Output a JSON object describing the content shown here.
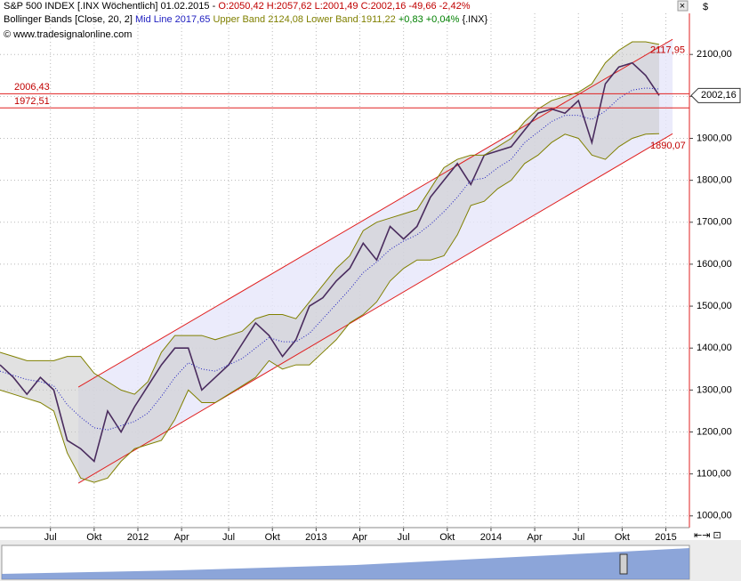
{
  "chart_data": {
    "type": "line",
    "title": "S&P 500 INDEX [.INX  Wöchentlich] 01.02.2015  -",
    "ohlc_text": "O:2050,42 H:2057,62 L:2001,49 C:2002,16 -49,66 -2,42%",
    "indicator": "Bollinger Bands [Close, 20, 2]",
    "change_text": "+0,83 +0,04%",
    "symbol": "{.INX}",
    "source": "© www.tradesignalonline.com",
    "x": [
      0,
      4,
      8,
      12,
      16,
      20,
      24,
      28,
      32,
      36,
      40,
      44,
      48,
      52,
      56,
      60,
      64,
      68,
      72,
      76,
      80,
      84,
      88,
      92,
      96,
      100,
      104,
      108,
      112,
      116,
      120,
      124,
      128,
      132,
      136,
      140,
      144,
      148,
      152,
      156,
      160,
      164,
      168,
      172,
      176,
      180,
      184,
      188,
      192,
      196
    ],
    "series": [
      {
        "name": "S&P 500 INDEX",
        "color": "#4a2c5e",
        "values": [
          1360,
          1330,
          1290,
          1330,
          1300,
          1180,
          1160,
          1130,
          1250,
          1200,
          1260,
          1310,
          1360,
          1400,
          1400,
          1300,
          1330,
          1360,
          1410,
          1460,
          1430,
          1380,
          1420,
          1500,
          1520,
          1560,
          1590,
          1650,
          1610,
          1690,
          1660,
          1690,
          1760,
          1800,
          1840,
          1790,
          1860,
          1870,
          1880,
          1920,
          1960,
          1970,
          1960,
          1990,
          1890,
          2030,
          2070,
          2080,
          2050,
          2002.16
        ]
      },
      {
        "name": "Upper Band",
        "color": "#808000",
        "last_label": "2124,08",
        "values": [
          1390,
          1380,
          1370,
          1370,
          1370,
          1380,
          1380,
          1340,
          1320,
          1300,
          1290,
          1320,
          1390,
          1430,
          1430,
          1430,
          1420,
          1430,
          1440,
          1470,
          1480,
          1480,
          1470,
          1510,
          1550,
          1590,
          1620,
          1680,
          1700,
          1710,
          1720,
          1730,
          1780,
          1830,
          1850,
          1860,
          1860,
          1880,
          1900,
          1940,
          1970,
          1990,
          2000,
          2010,
          2030,
          2080,
          2110,
          2130,
          2130,
          2124.08
        ]
      },
      {
        "name": "Lower Band",
        "color": "#808000",
        "last_label": "1911,22",
        "values": [
          1300,
          1290,
          1280,
          1270,
          1250,
          1150,
          1090,
          1080,
          1090,
          1130,
          1160,
          1170,
          1180,
          1230,
          1300,
          1270,
          1270,
          1290,
          1310,
          1330,
          1370,
          1350,
          1360,
          1360,
          1390,
          1420,
          1460,
          1480,
          1510,
          1560,
          1590,
          1610,
          1610,
          1620,
          1670,
          1740,
          1750,
          1780,
          1800,
          1840,
          1860,
          1890,
          1910,
          1900,
          1860,
          1850,
          1880,
          1900,
          1910,
          1911.22
        ]
      },
      {
        "name": "Mid Line",
        "color": "#2020c0",
        "last_label": "2017,65",
        "values": [
          1345,
          1335,
          1325,
          1320,
          1310,
          1265,
          1235,
          1210,
          1205,
          1215,
          1225,
          1245,
          1285,
          1330,
          1365,
          1350,
          1345,
          1360,
          1375,
          1400,
          1425,
          1415,
          1415,
          1435,
          1470,
          1505,
          1540,
          1580,
          1605,
          1635,
          1655,
          1670,
          1695,
          1725,
          1760,
          1800,
          1805,
          1830,
          1850,
          1890,
          1915,
          1940,
          1955,
          1955,
          1945,
          1965,
          1995,
          2015,
          2020,
          2017.65
        ]
      }
    ],
    "channel": [
      {
        "x": [
          23.3,
          200
        ],
        "values": [
          1307,
          2136
        ],
        "end_label": {
          "value": 2117.95,
          "label": "2117,95"
        }
      },
      {
        "x": [
          23.3,
          200
        ],
        "values": [
          1078,
          1911
        ],
        "end_label": {
          "value": 1890.07,
          "label": "1890,07"
        }
      }
    ],
    "hlines": [
      {
        "value": 2006.43,
        "label": "2006,43"
      },
      {
        "value": 1972.51,
        "label": "1972,51"
      }
    ],
    "last_price": {
      "value": 2002.16,
      "label": "2002,16"
    },
    "xlim": [
      0,
      205
    ],
    "xticks": [
      {
        "value": 15,
        "label": "Jul"
      },
      {
        "value": 28,
        "label": "Okt"
      },
      {
        "value": 41,
        "label": "2012"
      },
      {
        "value": 54,
        "label": "Apr"
      },
      {
        "value": 68,
        "label": "Jul"
      },
      {
        "value": 81,
        "label": "Okt"
      },
      {
        "value": 94,
        "label": "2013"
      },
      {
        "value": 107,
        "label": "Apr"
      },
      {
        "value": 120,
        "label": "Jul"
      },
      {
        "value": 133,
        "label": "Okt"
      },
      {
        "value": 146,
        "label": "2014"
      },
      {
        "value": 159,
        "label": "Apr"
      },
      {
        "value": 172,
        "label": "Jul"
      },
      {
        "value": 185,
        "label": "Okt"
      },
      {
        "value": 198,
        "label": "2015"
      }
    ],
    "ylim": [
      972,
      2198
    ],
    "yticks": [
      {
        "value": 1000,
        "label": "1000,00"
      },
      {
        "value": 1100,
        "label": "1100,00"
      },
      {
        "value": 1200,
        "label": "1200,00"
      },
      {
        "value": 1300,
        "label": "1300,00"
      },
      {
        "value": 1400,
        "label": "1400,00"
      },
      {
        "value": 1500,
        "label": "1500,00"
      },
      {
        "value": 1600,
        "label": "1600,00"
      },
      {
        "value": 1700,
        "label": "1700,00"
      },
      {
        "value": 1800,
        "label": "1800,00"
      },
      {
        "value": 1900,
        "label": "1900,00"
      },
      {
        "value": 2000,
        "label": "2000,00"
      },
      {
        "value": 2100,
        "label": "2100,00"
      }
    ],
    "grid": true
  }
}
